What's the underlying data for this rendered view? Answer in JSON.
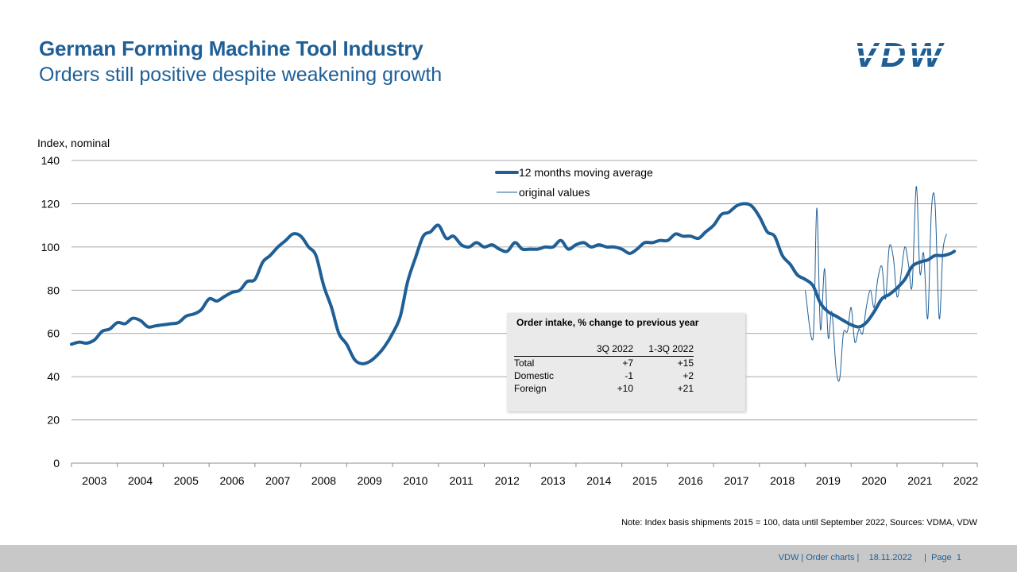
{
  "header": {
    "title": "German Forming Machine Tool Industry",
    "subtitle": "Orders still positive despite weakening growth",
    "logo_text": "VDW"
  },
  "chart_data": {
    "type": "line",
    "ylabel": "Index,  nominal",
    "ylim": [
      0,
      140
    ],
    "yticks": [
      "0",
      "20",
      "40",
      "60",
      "80",
      "100",
      "120",
      "140"
    ],
    "xlim": [
      2003,
      2022.75
    ],
    "xticks": [
      "2003",
      "2004",
      "2005",
      "2006",
      "2007",
      "2008",
      "2009",
      "2010",
      "2011",
      "2012",
      "2013",
      "2014",
      "2015",
      "2016",
      "2017",
      "2018",
      "2019",
      "2020",
      "2021",
      "2022"
    ],
    "grid": true,
    "legend_position": "top-center",
    "series": [
      {
        "name": "12 months moving average",
        "color": "#1f5f96",
        "style": "thick",
        "points": [
          [
            2003.0,
            55
          ],
          [
            2003.17,
            56
          ],
          [
            2003.33,
            55.5
          ],
          [
            2003.5,
            57
          ],
          [
            2003.67,
            61
          ],
          [
            2003.83,
            62
          ],
          [
            2004.0,
            65
          ],
          [
            2004.17,
            64.5
          ],
          [
            2004.33,
            67
          ],
          [
            2004.5,
            66
          ],
          [
            2004.67,
            63
          ],
          [
            2004.83,
            63.5
          ],
          [
            2005.0,
            64
          ],
          [
            2005.17,
            64.5
          ],
          [
            2005.33,
            65
          ],
          [
            2005.5,
            68
          ],
          [
            2005.67,
            69
          ],
          [
            2005.83,
            71
          ],
          [
            2006.0,
            76
          ],
          [
            2006.17,
            75
          ],
          [
            2006.33,
            77
          ],
          [
            2006.5,
            79
          ],
          [
            2006.67,
            80
          ],
          [
            2006.83,
            84
          ],
          [
            2007.0,
            85
          ],
          [
            2007.17,
            93
          ],
          [
            2007.33,
            96
          ],
          [
            2007.5,
            100
          ],
          [
            2007.67,
            103
          ],
          [
            2007.83,
            106
          ],
          [
            2008.0,
            105
          ],
          [
            2008.17,
            100
          ],
          [
            2008.33,
            96
          ],
          [
            2008.5,
            82
          ],
          [
            2008.67,
            72
          ],
          [
            2008.83,
            60
          ],
          [
            2009.0,
            55
          ],
          [
            2009.17,
            48
          ],
          [
            2009.33,
            46
          ],
          [
            2009.5,
            47
          ],
          [
            2009.67,
            50
          ],
          [
            2009.83,
            54
          ],
          [
            2010.0,
            60
          ],
          [
            2010.17,
            68
          ],
          [
            2010.33,
            84
          ],
          [
            2010.5,
            95
          ],
          [
            2010.67,
            105
          ],
          [
            2010.83,
            107
          ],
          [
            2011.0,
            110
          ],
          [
            2011.17,
            104
          ],
          [
            2011.33,
            105
          ],
          [
            2011.5,
            101
          ],
          [
            2011.67,
            100
          ],
          [
            2011.83,
            102
          ],
          [
            2012.0,
            100
          ],
          [
            2012.17,
            101
          ],
          [
            2012.33,
            99
          ],
          [
            2012.5,
            98
          ],
          [
            2012.67,
            102
          ],
          [
            2012.83,
            99
          ],
          [
            2013.0,
            99
          ],
          [
            2013.17,
            99
          ],
          [
            2013.33,
            100
          ],
          [
            2013.5,
            100
          ],
          [
            2013.67,
            103
          ],
          [
            2013.83,
            99
          ],
          [
            2014.0,
            101
          ],
          [
            2014.17,
            102
          ],
          [
            2014.33,
            100
          ],
          [
            2014.5,
            101
          ],
          [
            2014.67,
            100
          ],
          [
            2014.83,
            100
          ],
          [
            2015.0,
            99
          ],
          [
            2015.17,
            97
          ],
          [
            2015.33,
            99
          ],
          [
            2015.5,
            102
          ],
          [
            2015.67,
            102
          ],
          [
            2015.83,
            103
          ],
          [
            2016.0,
            103
          ],
          [
            2016.17,
            106
          ],
          [
            2016.33,
            105
          ],
          [
            2016.5,
            105
          ],
          [
            2016.67,
            104
          ],
          [
            2016.83,
            107
          ],
          [
            2017.0,
            110
          ],
          [
            2017.17,
            115
          ],
          [
            2017.33,
            116
          ],
          [
            2017.5,
            119
          ],
          [
            2017.67,
            120
          ],
          [
            2017.83,
            119
          ],
          [
            2018.0,
            114
          ],
          [
            2018.17,
            107
          ],
          [
            2018.33,
            105
          ],
          [
            2018.5,
            96
          ],
          [
            2018.67,
            92
          ],
          [
            2018.83,
            87
          ],
          [
            2019.0,
            85
          ],
          [
            2019.17,
            82
          ],
          [
            2019.33,
            74
          ],
          [
            2019.5,
            70
          ],
          [
            2019.67,
            68
          ],
          [
            2019.83,
            66
          ],
          [
            2020.0,
            64
          ],
          [
            2020.17,
            63
          ],
          [
            2020.33,
            65
          ],
          [
            2020.5,
            70
          ],
          [
            2020.67,
            76
          ],
          [
            2020.83,
            78
          ],
          [
            2021.0,
            81
          ],
          [
            2021.17,
            85
          ],
          [
            2021.33,
            91
          ],
          [
            2021.5,
            93
          ],
          [
            2021.67,
            94
          ],
          [
            2021.83,
            96
          ],
          [
            2022.0,
            96
          ],
          [
            2022.17,
            97
          ],
          [
            2022.25,
            98
          ]
        ]
      },
      {
        "name": "original values",
        "color": "#1f5f96",
        "style": "thin",
        "points": [
          [
            2019.0,
            80
          ],
          [
            2019.17,
            58
          ],
          [
            2019.25,
            118
          ],
          [
            2019.33,
            62
          ],
          [
            2019.42,
            90
          ],
          [
            2019.5,
            58
          ],
          [
            2019.58,
            70
          ],
          [
            2019.67,
            44
          ],
          [
            2019.75,
            39
          ],
          [
            2019.83,
            60
          ],
          [
            2019.92,
            61
          ],
          [
            2020.0,
            72
          ],
          [
            2020.08,
            56
          ],
          [
            2020.17,
            62
          ],
          [
            2020.25,
            60
          ],
          [
            2020.33,
            72
          ],
          [
            2020.42,
            80
          ],
          [
            2020.5,
            72
          ],
          [
            2020.58,
            85
          ],
          [
            2020.67,
            91
          ],
          [
            2020.75,
            76
          ],
          [
            2020.83,
            100
          ],
          [
            2020.92,
            95
          ],
          [
            2021.0,
            77
          ],
          [
            2021.08,
            86
          ],
          [
            2021.17,
            100
          ],
          [
            2021.25,
            92
          ],
          [
            2021.33,
            82
          ],
          [
            2021.42,
            128
          ],
          [
            2021.5,
            88
          ],
          [
            2021.58,
            97
          ],
          [
            2021.67,
            67
          ],
          [
            2021.75,
            117
          ],
          [
            2021.83,
            120
          ],
          [
            2021.92,
            67
          ],
          [
            2022.0,
            98
          ],
          [
            2022.08,
            106
          ]
        ]
      }
    ]
  },
  "table": {
    "title": "Order intake, % change to previous year",
    "headers": [
      "",
      "3Q 2022",
      "1-3Q 2022"
    ],
    "rows": [
      [
        "Total",
        "+7",
        "+15"
      ],
      [
        "Domestic",
        "-1",
        "+2"
      ],
      [
        "Foreign",
        "+10",
        "+21"
      ]
    ]
  },
  "note": "Note: Index basis shipments 2015 = 100, data until September 2022, Sources: VDMA,  VDW",
  "footer": "VDW | Order charts |    18.11.2022     |  Page  1"
}
